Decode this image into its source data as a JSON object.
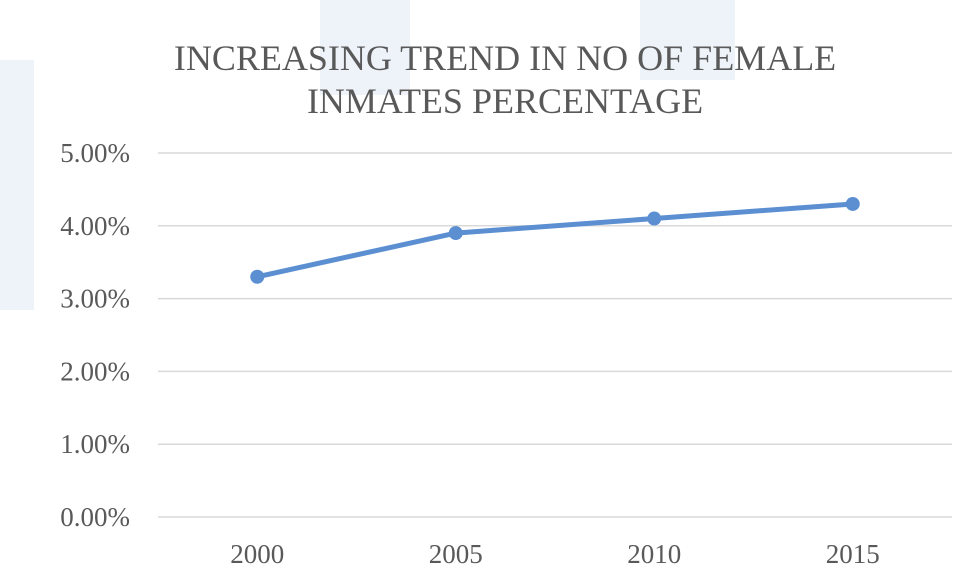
{
  "chart_data": {
    "type": "line",
    "title_lines": [
      "INCREASING TREND IN NO OF FEMALE",
      "INMATES PERCENTAGE"
    ],
    "categories": [
      "2000",
      "2005",
      "2010",
      "2015"
    ],
    "series": [
      {
        "values": [
          0.033,
          0.039,
          0.041,
          0.043
        ]
      }
    ],
    "ylim": [
      0,
      0.05
    ],
    "y_ticks": [
      0,
      0.01,
      0.02,
      0.03,
      0.04,
      0.05
    ],
    "y_tick_labels": [
      "0.00%",
      "1.00%",
      "2.00%",
      "3.00%",
      "4.00%",
      "5.00%"
    ],
    "xlabel": "",
    "ylabel": "",
    "grid": true,
    "legend": "none",
    "colors": {
      "line": "#5b8fd1",
      "grid": "#d9d9d9",
      "text": "#595959"
    }
  }
}
